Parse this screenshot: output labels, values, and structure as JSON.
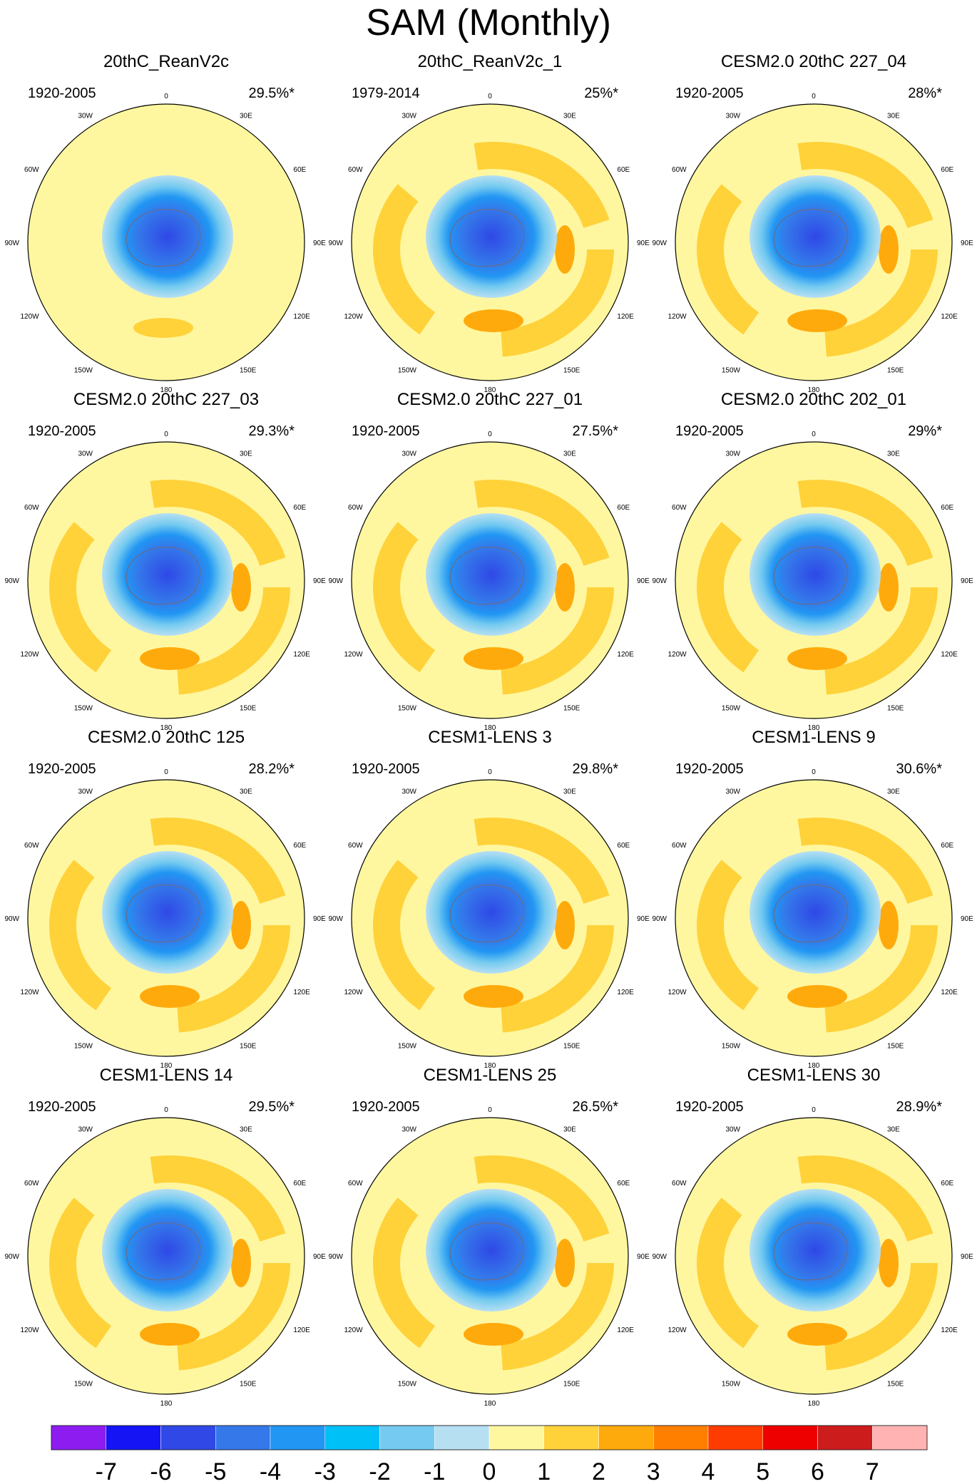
{
  "title": "SAM (Monthly)",
  "chart_data": {
    "type": "polar-contour-map",
    "projection": "south polar stereographic",
    "longitude_labels": [
      "0",
      "30E",
      "60E",
      "90E",
      "120E",
      "150E",
      "180",
      "150W",
      "120W",
      "90W",
      "60W",
      "30W"
    ],
    "colorbar": {
      "ticks": [
        "-7",
        "-6",
        "-5",
        "-4",
        "-3",
        "-2",
        "-1",
        "0",
        "1",
        "2",
        "3",
        "4",
        "5",
        "6",
        "7"
      ],
      "colors": [
        "#8c1cf0",
        "#1414f4",
        "#2f48e6",
        "#3478ea",
        "#2196f3",
        "#00c0f8",
        "#74caf0",
        "#b6dff2",
        "#fff7a0",
        "#ffd23a",
        "#ffaa0c",
        "#ff7f00",
        "#ff3c00",
        "#ee0000",
        "#cd1c1c",
        "#ffb3b3"
      ]
    },
    "panels": [
      {
        "title": "20thC_ReanV2c",
        "period": "1920-2005",
        "variance": "29.5%*"
      },
      {
        "title": "20thC_ReanV2c_1",
        "period": "1979-2014",
        "variance": "25%*"
      },
      {
        "title": "CESM2.0 20thC 227_04",
        "period": "1920-2005",
        "variance": "28%*"
      },
      {
        "title": "CESM2.0 20thC 227_03",
        "period": "1920-2005",
        "variance": "29.3%*"
      },
      {
        "title": "CESM2.0 20thC 227_01",
        "period": "1920-2005",
        "variance": "27.5%*"
      },
      {
        "title": "CESM2.0 20thC 202_01",
        "period": "1920-2005",
        "variance": "29%*"
      },
      {
        "title": "CESM2.0 20thC 125",
        "period": "1920-2005",
        "variance": "28.2%*"
      },
      {
        "title": "CESM1-LENS 3",
        "period": "1920-2005",
        "variance": "29.8%*"
      },
      {
        "title": "CESM1-LENS 9",
        "period": "1920-2005",
        "variance": "30.6%*"
      },
      {
        "title": "CESM1-LENS 14",
        "period": "1920-2005",
        "variance": "29.5%*"
      },
      {
        "title": "CESM1-LENS 25",
        "period": "1920-2005",
        "variance": "26.5%*"
      },
      {
        "title": "CESM1-LENS 30",
        "period": "1920-2005",
        "variance": "28.9%*"
      }
    ]
  }
}
